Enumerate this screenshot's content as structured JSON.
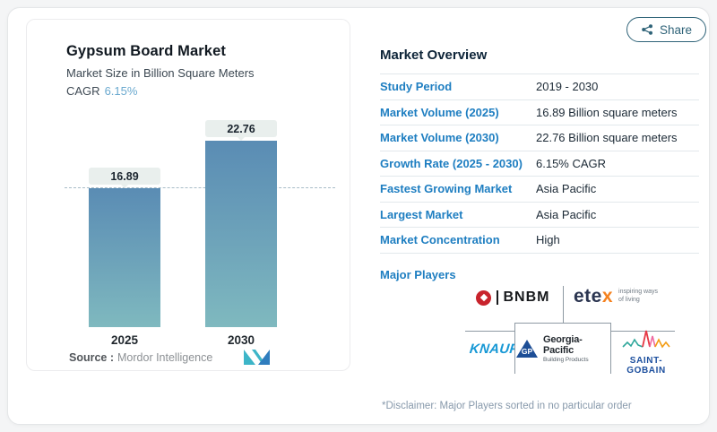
{
  "header": {
    "share_label": "Share"
  },
  "chart_card": {
    "title": "Gypsum Board Market",
    "subtitle": "Market Size in Billion Square Meters",
    "cagr_label": "CAGR",
    "cagr_value": "6.15%",
    "source_label": "Source :",
    "source_value": "Mordor Intelligence"
  },
  "chart_data": {
    "type": "bar",
    "title": "Gypsum Board Market",
    "subtitle": "Market Size in Billion Square Meters",
    "categories": [
      "2025",
      "2030"
    ],
    "values": [
      16.89,
      22.76
    ],
    "data_labels": [
      "16.89",
      "22.76"
    ],
    "unit": "Billion Square Meters",
    "cagr_percent": 6.15,
    "reference_line_y": 16.89,
    "ylim": [
      0,
      24
    ],
    "grid": false,
    "legend": "none",
    "bar_gradient_top": "#5a8cb4",
    "bar_gradient_bottom": "#7fb9bf"
  },
  "overview": {
    "title": "Market Overview",
    "rows": [
      {
        "label": "Study Period",
        "value": "2019 - 2030"
      },
      {
        "label": "Market Volume (2025)",
        "value": "16.89 Billion square meters"
      },
      {
        "label": "Market Volume (2030)",
        "value": "22.76 Billion square meters"
      },
      {
        "label": "Growth Rate (2025 - 2030)",
        "value": "6.15% CAGR"
      },
      {
        "label": "Fastest Growing Market",
        "value": "Asia Pacific"
      },
      {
        "label": "Largest Market",
        "value": "Asia Pacific"
      },
      {
        "label": "Market Concentration",
        "value": "High"
      }
    ],
    "major_players_label": "Major Players",
    "disclaimer": "*Disclaimer: Major Players sorted in no particular order"
  },
  "players": {
    "bnbm_text": "BNBM",
    "etex_text_a": "ete",
    "etex_text_b": "x",
    "etex_tagline_line1": "inspiring ways",
    "etex_tagline_line2": "of living",
    "knauf_text": "KNAUF",
    "gp_monogram": "GP",
    "gp_name": "Georgia-Pacific",
    "gp_sub": "Building Products",
    "saint_gobain_text": "SAINT-GOBAIN"
  },
  "colors": {
    "accent_blue": "#1e7ec1",
    "heading_dark": "#0d2438",
    "cagr_value_blue": "#6aa9cf",
    "share_teal": "#2f6378",
    "bar_gradient_top": "#5a8cb4",
    "bar_gradient_bottom": "#7fb9bf",
    "value_pill_bg": "#e9efed",
    "bnbm_red": "#c8232c",
    "etex_orange": "#f5821f",
    "knauf_blue": "#1798d5",
    "saint_gobain_blue": "#1c4f9e"
  }
}
